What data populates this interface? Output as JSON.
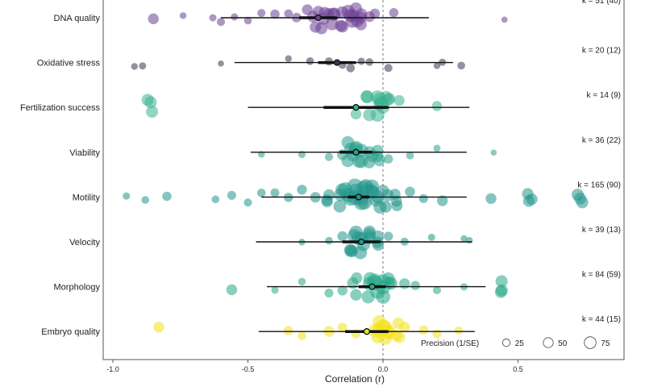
{
  "chart_data": {
    "type": "scatter",
    "subtype": "orchard",
    "xlabel": "Correlation (r)",
    "xlim": [
      -1.05,
      0.88
    ],
    "xticks": [
      -1.0,
      -0.5,
      0.0,
      0.5
    ],
    "xtick_labels": [
      "-1.0",
      "-0.5",
      "0.0",
      "0.5"
    ],
    "legend": {
      "title": "Precision (1/SE)",
      "values": [
        25,
        50,
        75
      ],
      "labels": [
        "25",
        "50",
        "75"
      ],
      "placement": "bottom-right"
    },
    "groups": [
      {
        "name": "DNA quality",
        "k_label": "k = 51 (40)",
        "color": "#6b3f94",
        "estimate": -0.24,
        "ci": [
          -0.31,
          -0.17
        ],
        "pi": [
          -0.6,
          0.17
        ],
        "points": [
          [
            -0.85,
            30
          ],
          [
            -0.74,
            8
          ],
          [
            -0.63,
            10
          ],
          [
            -0.6,
            14
          ],
          [
            -0.55,
            10
          ],
          [
            -0.5,
            12
          ],
          [
            -0.45,
            14
          ],
          [
            -0.4,
            20
          ],
          [
            -0.35,
            16
          ],
          [
            -0.32,
            22
          ],
          [
            -0.28,
            30
          ],
          [
            -0.25,
            35
          ],
          [
            -0.22,
            40
          ],
          [
            -0.2,
            28
          ],
          [
            -0.18,
            45
          ],
          [
            -0.15,
            38
          ],
          [
            -0.12,
            50
          ],
          [
            -0.1,
            42
          ],
          [
            -0.08,
            36
          ],
          [
            -0.05,
            30
          ],
          [
            -0.03,
            25
          ],
          [
            0.04,
            20
          ],
          [
            0.45,
            6
          ]
        ]
      },
      {
        "name": "Oxidative stress",
        "k_label": "k = 20 (12)",
        "color": "#3d3455",
        "estimate": -0.17,
        "ci": [
          -0.24,
          -0.1
        ],
        "pi": [
          -0.55,
          0.26
        ],
        "points": [
          [
            -0.92,
            8
          ],
          [
            -0.89,
            10
          ],
          [
            -0.6,
            6
          ],
          [
            -0.35,
            8
          ],
          [
            -0.27,
            12
          ],
          [
            -0.2,
            14
          ],
          [
            -0.15,
            12
          ],
          [
            -0.12,
            16
          ],
          [
            -0.08,
            10
          ],
          [
            -0.05,
            12
          ],
          [
            0.02,
            14
          ],
          [
            0.2,
            8
          ],
          [
            0.22,
            10
          ],
          [
            0.29,
            12
          ]
        ]
      },
      {
        "name": "Fertilization success",
        "k_label": "k = 14 (9)",
        "color": "#3bb290",
        "estimate": -0.1,
        "ci": [
          -0.22,
          0.02
        ],
        "pi": [
          -0.5,
          0.32
        ],
        "points": [
          [
            -0.86,
            40
          ],
          [
            -0.1,
            30
          ],
          [
            -0.05,
            45
          ],
          [
            -0.02,
            55
          ],
          [
            0.0,
            50
          ],
          [
            0.02,
            38
          ],
          [
            0.06,
            30
          ],
          [
            0.2,
            25
          ]
        ]
      },
      {
        "name": "Viability",
        "k_label": "k = 36 (22)",
        "color": "#2a9f8c",
        "estimate": -0.1,
        "ci": [
          -0.16,
          -0.04
        ],
        "pi": [
          -0.49,
          0.31
        ],
        "points": [
          [
            -0.45,
            8
          ],
          [
            -0.3,
            10
          ],
          [
            -0.2,
            14
          ],
          [
            -0.15,
            30
          ],
          [
            -0.12,
            45
          ],
          [
            -0.1,
            55
          ],
          [
            -0.08,
            50
          ],
          [
            -0.05,
            40
          ],
          [
            -0.02,
            35
          ],
          [
            0.02,
            20
          ],
          [
            0.1,
            12
          ],
          [
            0.2,
            10
          ],
          [
            0.41,
            6
          ]
        ]
      },
      {
        "name": "Motility",
        "k_label": "k = 165 (90)",
        "color": "#22968a",
        "estimate": -0.09,
        "ci": [
          -0.13,
          -0.05
        ],
        "pi": [
          -0.45,
          0.31
        ],
        "points": [
          [
            -0.95,
            10
          ],
          [
            -0.88,
            12
          ],
          [
            -0.8,
            20
          ],
          [
            -0.62,
            12
          ],
          [
            -0.56,
            18
          ],
          [
            -0.5,
            14
          ],
          [
            -0.45,
            16
          ],
          [
            -0.4,
            18
          ],
          [
            -0.35,
            20
          ],
          [
            -0.3,
            24
          ],
          [
            -0.25,
            28
          ],
          [
            -0.2,
            34
          ],
          [
            -0.16,
            45
          ],
          [
            -0.13,
            60
          ],
          [
            -0.1,
            75
          ],
          [
            -0.08,
            70
          ],
          [
            -0.06,
            65
          ],
          [
            -0.04,
            55
          ],
          [
            -0.02,
            48
          ],
          [
            0.01,
            40
          ],
          [
            0.05,
            32
          ],
          [
            0.1,
            25
          ],
          [
            0.15,
            18
          ],
          [
            0.22,
            30
          ],
          [
            0.4,
            30
          ],
          [
            0.54,
            35
          ],
          [
            0.73,
            40
          ]
        ]
      },
      {
        "name": "Velocity",
        "k_label": "k = 39 (13)",
        "color": "#22968a",
        "estimate": -0.08,
        "ci": [
          -0.15,
          -0.01
        ],
        "pi": [
          -0.47,
          0.33
        ],
        "points": [
          [
            -0.3,
            8
          ],
          [
            -0.2,
            12
          ],
          [
            -0.15,
            25
          ],
          [
            -0.12,
            40
          ],
          [
            -0.1,
            55
          ],
          [
            -0.08,
            50
          ],
          [
            -0.05,
            45
          ],
          [
            -0.02,
            35
          ],
          [
            0.02,
            20
          ],
          [
            0.08,
            14
          ],
          [
            0.18,
            10
          ],
          [
            0.3,
            8
          ],
          [
            0.32,
            8
          ]
        ]
      },
      {
        "name": "Morphology",
        "k_label": "k = 84 (59)",
        "color": "#27a887",
        "estimate": -0.04,
        "ci": [
          -0.09,
          0.01
        ],
        "pi": [
          -0.43,
          0.38
        ],
        "points": [
          [
            -0.56,
            30
          ],
          [
            -0.4,
            10
          ],
          [
            -0.3,
            12
          ],
          [
            -0.2,
            18
          ],
          [
            -0.15,
            24
          ],
          [
            -0.1,
            35
          ],
          [
            -0.05,
            50
          ],
          [
            -0.02,
            65
          ],
          [
            0.0,
            60
          ],
          [
            0.03,
            45
          ],
          [
            0.08,
            30
          ],
          [
            0.12,
            20
          ],
          [
            0.2,
            14
          ],
          [
            0.3,
            10
          ],
          [
            0.44,
            40
          ]
        ]
      },
      {
        "name": "Embryo quality",
        "k_label": "k = 44 (15)",
        "color": "#f2e21a",
        "estimate": -0.06,
        "ci": [
          -0.14,
          0.02
        ],
        "pi": [
          -0.46,
          0.34
        ],
        "points": [
          [
            -0.83,
            30
          ],
          [
            -0.35,
            20
          ],
          [
            -0.3,
            16
          ],
          [
            -0.2,
            30
          ],
          [
            -0.15,
            22
          ],
          [
            -0.1,
            18
          ],
          [
            -0.02,
            50
          ],
          [
            0.0,
            65
          ],
          [
            0.02,
            55
          ],
          [
            0.05,
            35
          ],
          [
            0.08,
            28
          ],
          [
            0.15,
            20
          ],
          [
            0.2,
            18
          ],
          [
            0.28,
            14
          ]
        ]
      }
    ]
  }
}
